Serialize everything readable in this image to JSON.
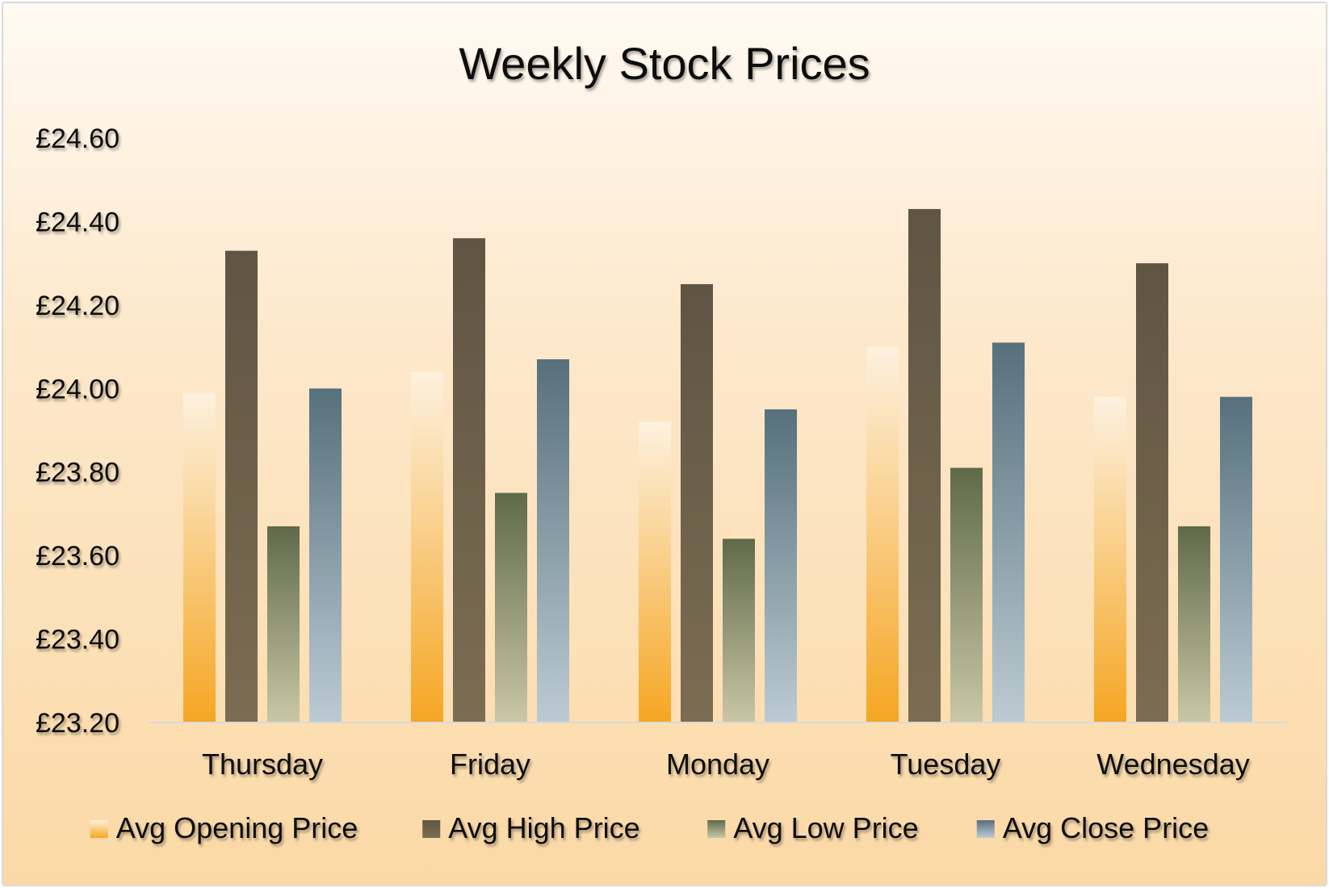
{
  "chart_data": {
    "type": "bar",
    "title": "Weekly Stock Prices",
    "xlabel": "",
    "ylabel": "",
    "categories": [
      "Thursday",
      "Friday",
      "Monday",
      "Tuesday",
      "Wednesday"
    ],
    "series": [
      {
        "name": "Avg Opening Price",
        "values": [
          23.99,
          24.04,
          23.92,
          24.1,
          23.98
        ],
        "color_top": "#fdf1df",
        "color_bottom": "#f5a623"
      },
      {
        "name": "Avg High Price",
        "values": [
          24.33,
          24.36,
          24.25,
          24.43,
          24.3
        ],
        "color_top": "#5f5543",
        "color_bottom": "#7b6d52"
      },
      {
        "name": "Avg Low Price",
        "values": [
          23.67,
          23.75,
          23.64,
          23.81,
          23.67
        ],
        "color_top": "#5f6a4a",
        "color_bottom": "#c9c7a6"
      },
      {
        "name": "Avg Close Price",
        "values": [
          24.0,
          24.07,
          23.95,
          24.11,
          23.98
        ],
        "color_top": "#56707c",
        "color_bottom": "#bccbd3"
      }
    ],
    "ylim": [
      23.2,
      24.6
    ],
    "yticks": [
      "£23.20",
      "£23.40",
      "£23.60",
      "£23.80",
      "£24.00",
      "£24.20",
      "£24.40",
      "£24.60"
    ],
    "ytick_values": [
      23.2,
      23.4,
      23.6,
      23.8,
      24.0,
      24.2,
      24.4,
      24.6
    ],
    "grid": false,
    "legend_position": "bottom",
    "colors": {
      "background_top": "#fffaf3",
      "background_bottom": "#fbd9a6",
      "axis_line": "#d9d9d9"
    }
  }
}
